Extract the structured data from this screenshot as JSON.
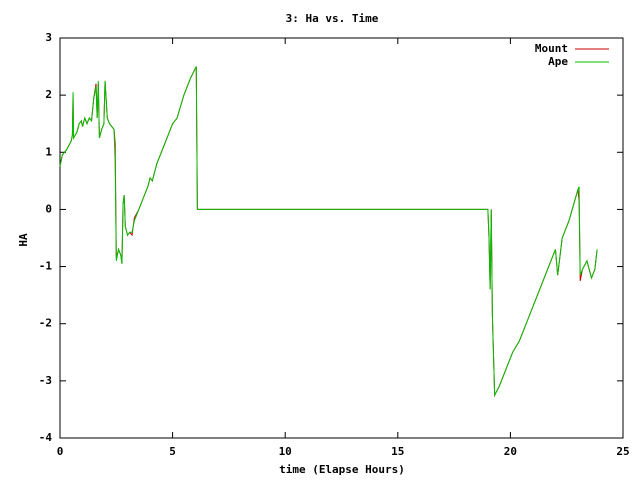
{
  "chart_data": {
    "type": "line",
    "title": "3: Ha vs. Time",
    "x_label": "time (Elapse Hours)",
    "y_label": "HA",
    "x": [
      0,
      0.1,
      0.3,
      0.5,
      0.55,
      0.58,
      0.6,
      0.75,
      0.85,
      0.95,
      1.0,
      1.1,
      1.2,
      1.3,
      1.4,
      1.5,
      1.6,
      1.65,
      1.7,
      1.75,
      1.85,
      1.95,
      2.0,
      2.1,
      2.2,
      2.3,
      2.4,
      2.45,
      2.5,
      2.6,
      2.7,
      2.75,
      2.8,
      2.85,
      2.9,
      3.0,
      3.1,
      3.2,
      3.3,
      3.5,
      3.7,
      3.9,
      4.0,
      4.1,
      4.3,
      4.5,
      4.8,
      5.0,
      5.2,
      5.5,
      5.8,
      6.05,
      6.1,
      19.0,
      19.05,
      19.1,
      19.15,
      19.2,
      19.3,
      19.5,
      19.8,
      20.1,
      20.4,
      20.8,
      21.2,
      21.6,
      22.0,
      22.1,
      22.3,
      22.6,
      23.0,
      23.05,
      23.1,
      23.2,
      23.4,
      23.6,
      23.75,
      23.85
    ],
    "series": [
      {
        "name": "Mount",
        "color": "#cc0000",
        "values": [
          0.75,
          0.95,
          1.05,
          1.2,
          1.3,
          2.0,
          1.25,
          1.35,
          1.5,
          1.55,
          1.45,
          1.6,
          1.5,
          1.6,
          1.55,
          1.95,
          2.2,
          1.6,
          2.2,
          1.25,
          1.4,
          1.5,
          2.25,
          1.6,
          1.5,
          1.45,
          1.4,
          1.15,
          -0.85,
          -0.7,
          -0.8,
          -0.95,
          0.1,
          0.25,
          -0.3,
          -0.45,
          -0.4,
          -0.45,
          -0.15,
          0.0,
          0.2,
          0.4,
          0.55,
          0.5,
          0.8,
          1.0,
          1.3,
          1.5,
          1.6,
          2.0,
          2.3,
          2.5,
          0,
          0,
          -0.5,
          -1.4,
          0,
          -1.85,
          -3.25,
          -3.1,
          -2.8,
          -2.5,
          -2.3,
          -1.9,
          -1.5,
          -1.1,
          -0.7,
          -1.15,
          -0.5,
          -0.2,
          0.35,
          0.15,
          -1.25,
          -1.05,
          -0.9,
          -1.2,
          -1.05,
          -0.7
        ]
      },
      {
        "name": "Ape",
        "color": "#00c000",
        "values": [
          0.75,
          0.95,
          1.05,
          1.2,
          1.3,
          2.05,
          1.25,
          1.35,
          1.5,
          1.55,
          1.45,
          1.6,
          1.5,
          1.6,
          1.55,
          1.95,
          2.15,
          1.6,
          2.25,
          1.25,
          1.4,
          1.5,
          2.25,
          1.6,
          1.5,
          1.45,
          1.4,
          0.8,
          -0.9,
          -0.7,
          -0.8,
          -0.95,
          0.1,
          0.25,
          -0.3,
          -0.45,
          -0.4,
          -0.4,
          -0.2,
          0.0,
          0.2,
          0.4,
          0.55,
          0.5,
          0.8,
          1.0,
          1.3,
          1.5,
          1.6,
          2.0,
          2.3,
          2.5,
          0,
          0,
          -0.5,
          -1.4,
          0,
          -1.85,
          -3.25,
          -3.1,
          -2.8,
          -2.5,
          -2.3,
          -1.9,
          -1.5,
          -1.1,
          -0.7,
          -1.15,
          -0.5,
          -0.2,
          0.35,
          0.4,
          -1.15,
          -1.05,
          -0.9,
          -1.2,
          -1.05,
          -0.7
        ]
      }
    ],
    "xlim": [
      0,
      25
    ],
    "xticks": [
      0,
      5,
      10,
      15,
      20,
      25
    ],
    "ylim": [
      -4,
      3
    ],
    "yticks": [
      -4,
      -3,
      -2,
      -1,
      0,
      1,
      2,
      3
    ],
    "legend": "upper right"
  }
}
